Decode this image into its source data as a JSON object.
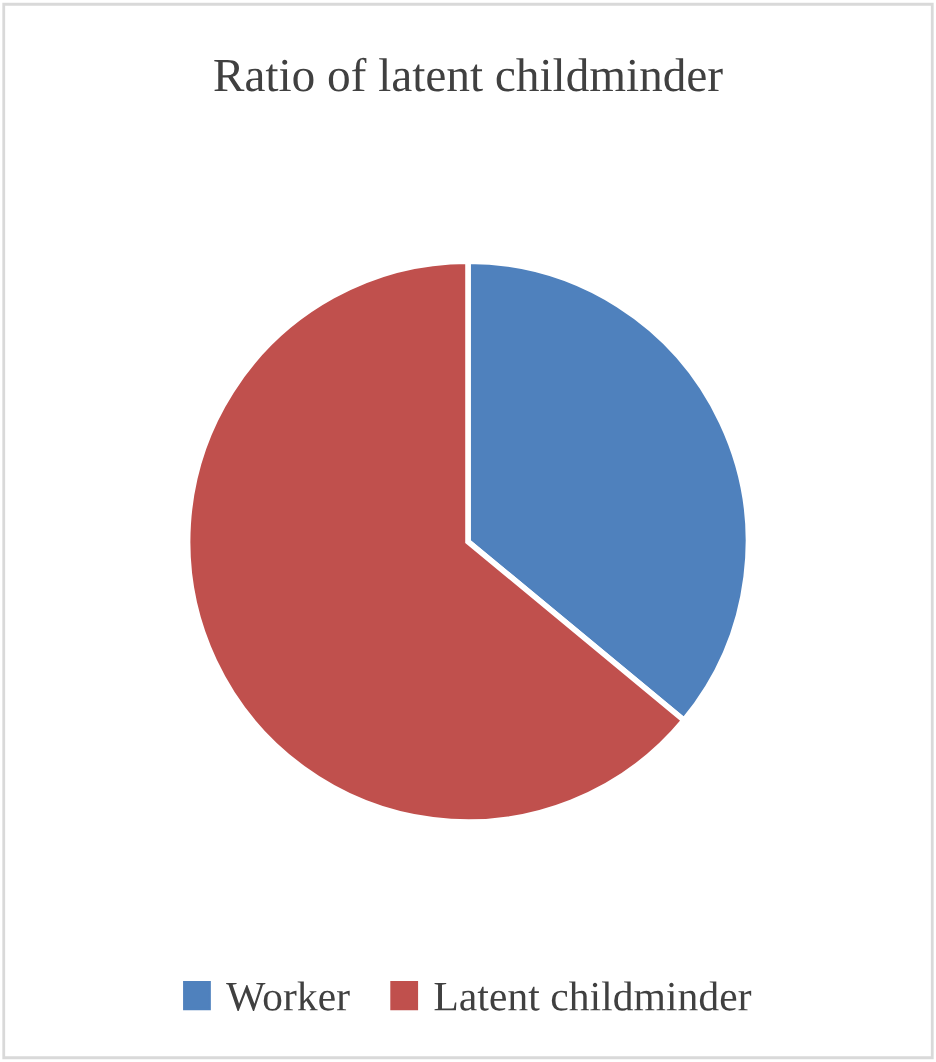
{
  "chart_data": {
    "type": "pie",
    "title": "Ratio of latent childminder",
    "categories": [
      "Worker",
      "Latent childminder"
    ],
    "values": [
      36,
      64
    ],
    "colors": [
      "#4f81bd",
      "#c0504d"
    ],
    "legend": "bottom"
  }
}
